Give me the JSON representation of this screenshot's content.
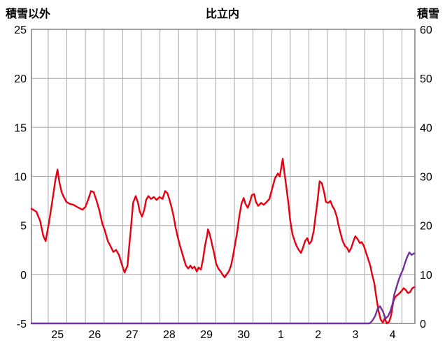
{
  "chart_data": {
    "type": "line",
    "title": "比立内",
    "left_axis": {
      "label": "積雪以外",
      "min": -5,
      "max": 25,
      "ticks": [
        25,
        20,
        15,
        10,
        5,
        0,
        -5
      ]
    },
    "right_axis": {
      "label": "積雪",
      "min": 0,
      "max": 60,
      "ticks": [
        60,
        50,
        40,
        30,
        20,
        10,
        0
      ]
    },
    "x_axis": {
      "min": 0,
      "max": 10.3,
      "labels": [
        "25",
        "26",
        "27",
        "28",
        "29",
        "30",
        "1",
        "2",
        "3",
        "4"
      ],
      "label_positions": [
        0.7,
        1.7,
        2.7,
        3.7,
        4.7,
        5.7,
        6.7,
        7.7,
        8.7,
        9.7
      ],
      "gridlines": [
        0.45,
        0.95,
        1.45,
        1.95,
        2.45,
        2.95,
        3.45,
        3.95,
        4.45,
        4.95,
        5.45,
        5.95,
        6.45,
        6.95,
        7.45,
        7.95,
        8.45,
        8.95,
        9.45,
        9.95
      ]
    },
    "style": {
      "grid_color": "#a6a6a6",
      "frame_color": "#7f7f7f",
      "background": "#ffffff",
      "text_color": "#000000"
    },
    "series": [
      {
        "id": "series-red-left-axis",
        "axis": "left",
        "color": "#e60012",
        "points": [
          [
            0.0,
            6.7
          ],
          [
            0.13,
            6.4
          ],
          [
            0.23,
            5.5
          ],
          [
            0.32,
            3.9
          ],
          [
            0.38,
            3.4
          ],
          [
            0.47,
            5.3
          ],
          [
            0.56,
            7.5
          ],
          [
            0.64,
            9.6
          ],
          [
            0.7,
            10.7
          ],
          [
            0.75,
            9.4
          ],
          [
            0.81,
            8.4
          ],
          [
            0.88,
            7.8
          ],
          [
            0.94,
            7.4
          ],
          [
            1.03,
            7.2
          ],
          [
            1.13,
            7.1
          ],
          [
            1.22,
            6.9
          ],
          [
            1.32,
            6.7
          ],
          [
            1.37,
            6.6
          ],
          [
            1.45,
            6.9
          ],
          [
            1.52,
            7.6
          ],
          [
            1.6,
            8.5
          ],
          [
            1.67,
            8.4
          ],
          [
            1.75,
            7.5
          ],
          [
            1.82,
            6.6
          ],
          [
            1.9,
            5.2
          ],
          [
            1.97,
            4.5
          ],
          [
            2.05,
            3.4
          ],
          [
            2.12,
            2.9
          ],
          [
            2.2,
            2.3
          ],
          [
            2.27,
            2.5
          ],
          [
            2.35,
            2.0
          ],
          [
            2.42,
            1.1
          ],
          [
            2.5,
            0.2
          ],
          [
            2.58,
            0.9
          ],
          [
            2.61,
            2.3
          ],
          [
            2.67,
            4.7
          ],
          [
            2.73,
            7.3
          ],
          [
            2.8,
            8.0
          ],
          [
            2.86,
            7.3
          ],
          [
            2.91,
            6.4
          ],
          [
            2.97,
            5.9
          ],
          [
            3.03,
            6.6
          ],
          [
            3.08,
            7.6
          ],
          [
            3.14,
            8.0
          ],
          [
            3.21,
            7.7
          ],
          [
            3.29,
            7.9
          ],
          [
            3.36,
            7.6
          ],
          [
            3.44,
            7.9
          ],
          [
            3.52,
            7.7
          ],
          [
            3.59,
            8.5
          ],
          [
            3.65,
            8.3
          ],
          [
            3.7,
            7.7
          ],
          [
            3.76,
            6.9
          ],
          [
            3.82,
            5.9
          ],
          [
            3.87,
            4.8
          ],
          [
            3.93,
            3.8
          ],
          [
            3.99,
            2.9
          ],
          [
            4.04,
            2.3
          ],
          [
            4.1,
            1.5
          ],
          [
            4.15,
            0.9
          ],
          [
            4.21,
            0.6
          ],
          [
            4.27,
            0.9
          ],
          [
            4.32,
            0.6
          ],
          [
            4.38,
            0.8
          ],
          [
            4.44,
            0.3
          ],
          [
            4.49,
            0.7
          ],
          [
            4.55,
            0.5
          ],
          [
            4.61,
            1.6
          ],
          [
            4.66,
            2.9
          ],
          [
            4.72,
            4.0
          ],
          [
            4.74,
            4.6
          ],
          [
            4.79,
            4.1
          ],
          [
            4.85,
            3.1
          ],
          [
            4.91,
            2.1
          ],
          [
            4.96,
            1.1
          ],
          [
            5.02,
            0.6
          ],
          [
            5.08,
            0.3
          ],
          [
            5.13,
            0.0
          ],
          [
            5.19,
            -0.3
          ],
          [
            5.24,
            0.0
          ],
          [
            5.3,
            0.3
          ],
          [
            5.36,
            0.9
          ],
          [
            5.41,
            1.8
          ],
          [
            5.47,
            3.1
          ],
          [
            5.53,
            4.4
          ],
          [
            5.58,
            5.9
          ],
          [
            5.64,
            7.2
          ],
          [
            5.7,
            7.8
          ],
          [
            5.75,
            7.2
          ],
          [
            5.81,
            6.8
          ],
          [
            5.86,
            7.3
          ],
          [
            5.92,
            8.1
          ],
          [
            5.98,
            8.2
          ],
          [
            6.03,
            7.4
          ],
          [
            6.09,
            7.0
          ],
          [
            6.17,
            7.3
          ],
          [
            6.24,
            7.1
          ],
          [
            6.32,
            7.4
          ],
          [
            6.39,
            7.7
          ],
          [
            6.47,
            8.8
          ],
          [
            6.54,
            9.8
          ],
          [
            6.62,
            10.3
          ],
          [
            6.67,
            10.0
          ],
          [
            6.75,
            11.8
          ],
          [
            6.79,
            10.5
          ],
          [
            6.84,
            9.1
          ],
          [
            6.9,
            7.3
          ],
          [
            6.95,
            5.5
          ],
          [
            7.01,
            4.1
          ],
          [
            7.07,
            3.4
          ],
          [
            7.12,
            2.9
          ],
          [
            7.18,
            2.5
          ],
          [
            7.24,
            2.2
          ],
          [
            7.29,
            2.7
          ],
          [
            7.35,
            3.4
          ],
          [
            7.41,
            3.7
          ],
          [
            7.46,
            3.1
          ],
          [
            7.52,
            3.4
          ],
          [
            7.58,
            4.4
          ],
          [
            7.63,
            5.9
          ],
          [
            7.69,
            7.7
          ],
          [
            7.74,
            9.5
          ],
          [
            7.8,
            9.3
          ],
          [
            7.86,
            8.4
          ],
          [
            7.91,
            7.4
          ],
          [
            7.97,
            7.3
          ],
          [
            8.03,
            7.5
          ],
          [
            8.08,
            7.0
          ],
          [
            8.14,
            6.6
          ],
          [
            8.2,
            5.9
          ],
          [
            8.25,
            5.0
          ],
          [
            8.31,
            4.1
          ],
          [
            8.36,
            3.4
          ],
          [
            8.42,
            2.9
          ],
          [
            8.48,
            2.7
          ],
          [
            8.53,
            2.3
          ],
          [
            8.59,
            2.7
          ],
          [
            8.65,
            3.4
          ],
          [
            8.7,
            3.9
          ],
          [
            8.76,
            3.6
          ],
          [
            8.82,
            3.2
          ],
          [
            8.87,
            3.3
          ],
          [
            8.93,
            2.9
          ],
          [
            8.98,
            2.3
          ],
          [
            9.04,
            1.6
          ],
          [
            9.1,
            0.9
          ],
          [
            9.15,
            0.0
          ],
          [
            9.21,
            -0.9
          ],
          [
            9.27,
            -2.5
          ],
          [
            9.32,
            -3.7
          ],
          [
            9.38,
            -4.6
          ],
          [
            9.44,
            -4.9
          ],
          [
            9.49,
            -4.5
          ],
          [
            9.55,
            -5.0
          ],
          [
            9.61,
            -4.8
          ],
          [
            9.66,
            -4.2
          ],
          [
            9.72,
            -2.8
          ],
          [
            9.77,
            -2.3
          ],
          [
            9.89,
            -1.9
          ],
          [
            9.94,
            -1.7
          ],
          [
            10.0,
            -1.4
          ],
          [
            10.06,
            -1.6
          ],
          [
            10.11,
            -1.9
          ],
          [
            10.17,
            -1.8
          ],
          [
            10.23,
            -1.4
          ],
          [
            10.28,
            -1.3
          ]
        ]
      },
      {
        "id": "series-purple-right-axis",
        "axis": "right",
        "color": "#7030a0",
        "points": [
          [
            0.0,
            0
          ],
          [
            1.0,
            0
          ],
          [
            2.0,
            0
          ],
          [
            3.0,
            0
          ],
          [
            4.0,
            0
          ],
          [
            5.0,
            0
          ],
          [
            6.0,
            0
          ],
          [
            7.0,
            0
          ],
          [
            8.0,
            0
          ],
          [
            8.9,
            0
          ],
          [
            9.08,
            0
          ],
          [
            9.15,
            0.5
          ],
          [
            9.23,
            1.5
          ],
          [
            9.3,
            3.0
          ],
          [
            9.36,
            3.5
          ],
          [
            9.44,
            2.5
          ],
          [
            9.51,
            1.0
          ],
          [
            9.58,
            1.5
          ],
          [
            9.64,
            2.5
          ],
          [
            9.7,
            4.0
          ],
          [
            9.75,
            6.0
          ],
          [
            9.81,
            7.5
          ],
          [
            9.87,
            9.0
          ],
          [
            9.92,
            10.0
          ],
          [
            9.98,
            11.0
          ],
          [
            10.04,
            12.5
          ],
          [
            10.09,
            13.5
          ],
          [
            10.15,
            14.5
          ],
          [
            10.21,
            14.0
          ],
          [
            10.28,
            14.3
          ]
        ]
      }
    ]
  }
}
